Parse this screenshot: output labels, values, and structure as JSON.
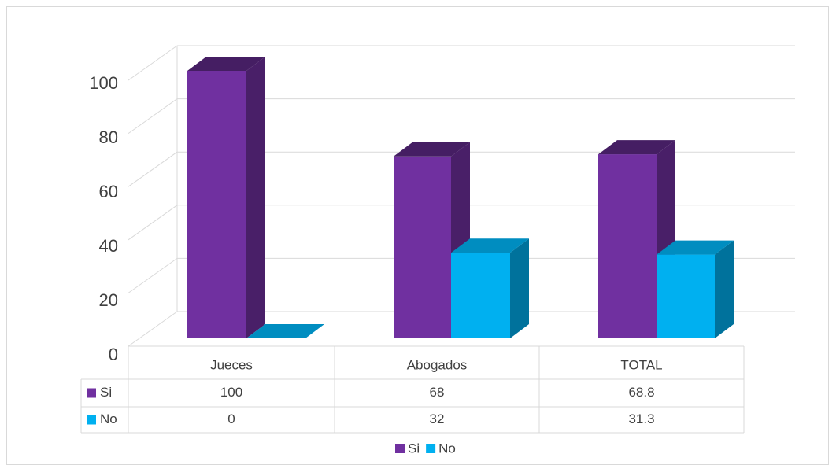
{
  "chart_data": {
    "type": "bar3d",
    "categories": [
      "Jueces",
      "Abogados",
      "TOTAL"
    ],
    "series": [
      {
        "name": "Si",
        "color": "#7030a0",
        "values": [
          100,
          68,
          68.8
        ]
      },
      {
        "name": "No",
        "color": "#00b0f0",
        "values": [
          0,
          32,
          31.3
        ]
      }
    ],
    "ylim": [
      0,
      100
    ],
    "yticks": [
      0,
      20,
      40,
      60,
      80,
      100
    ],
    "grid": true,
    "legend": "bottom",
    "data_table": true
  }
}
